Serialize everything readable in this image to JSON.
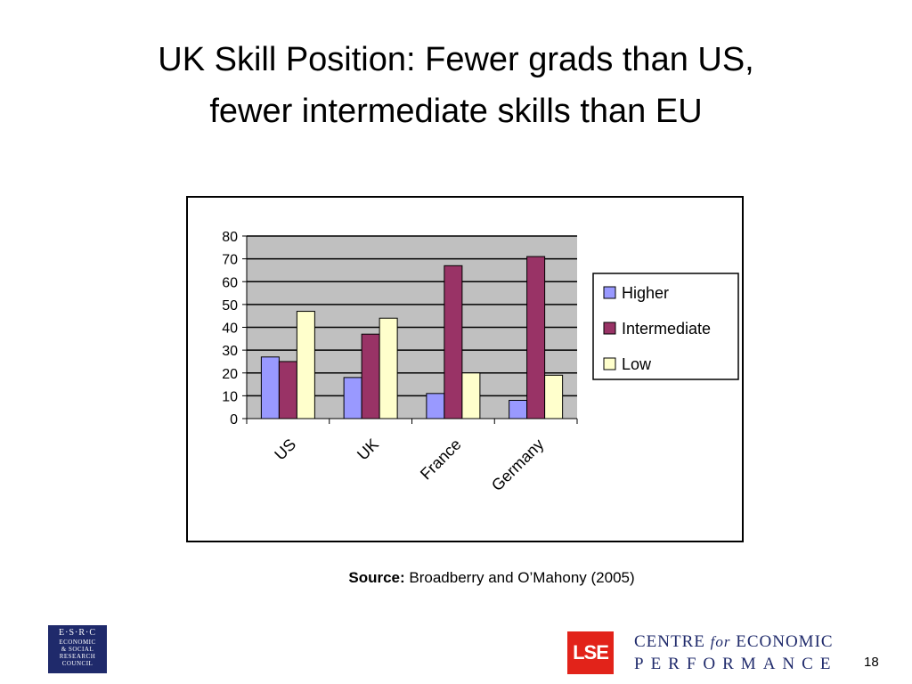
{
  "slide": {
    "title_line1": "UK Skill Position: Fewer grads than US,",
    "title_line2": "fewer intermediate skills than EU",
    "source_label": "Source:",
    "source_text": "Broadberry and O’Mahony (2005)",
    "page_number": "18"
  },
  "logos": {
    "esrc_top": "E·S·R·C",
    "esrc_lines": [
      "ECONOMIC",
      "& SOCIAL",
      "RESEARCH",
      "COUNCIL"
    ],
    "lse": "LSE",
    "cep_line1_a": "CENTRE",
    "cep_line1_for": "for",
    "cep_line1_b": "ECONOMIC",
    "cep_line2": "PERFORMANCE"
  },
  "chart_data": {
    "type": "bar",
    "categories": [
      "US",
      "UK",
      "France",
      "Germany"
    ],
    "series": [
      {
        "name": "Higher",
        "values": [
          27,
          18,
          11,
          8
        ],
        "color": "#9999ff"
      },
      {
        "name": "Intermediate",
        "values": [
          25,
          37,
          67,
          71
        ],
        "color": "#993366"
      },
      {
        "name": "Low",
        "values": [
          47,
          44,
          20,
          19
        ],
        "color": "#ffffcc"
      }
    ],
    "ylim": [
      0,
      80
    ],
    "yticks": [
      "0",
      "10",
      "20",
      "30",
      "40",
      "50",
      "60",
      "70",
      "80"
    ],
    "grid": true,
    "plot_background": "#c0c0c0",
    "legend_placement": "right",
    "xtick_rotation_deg": -45
  }
}
